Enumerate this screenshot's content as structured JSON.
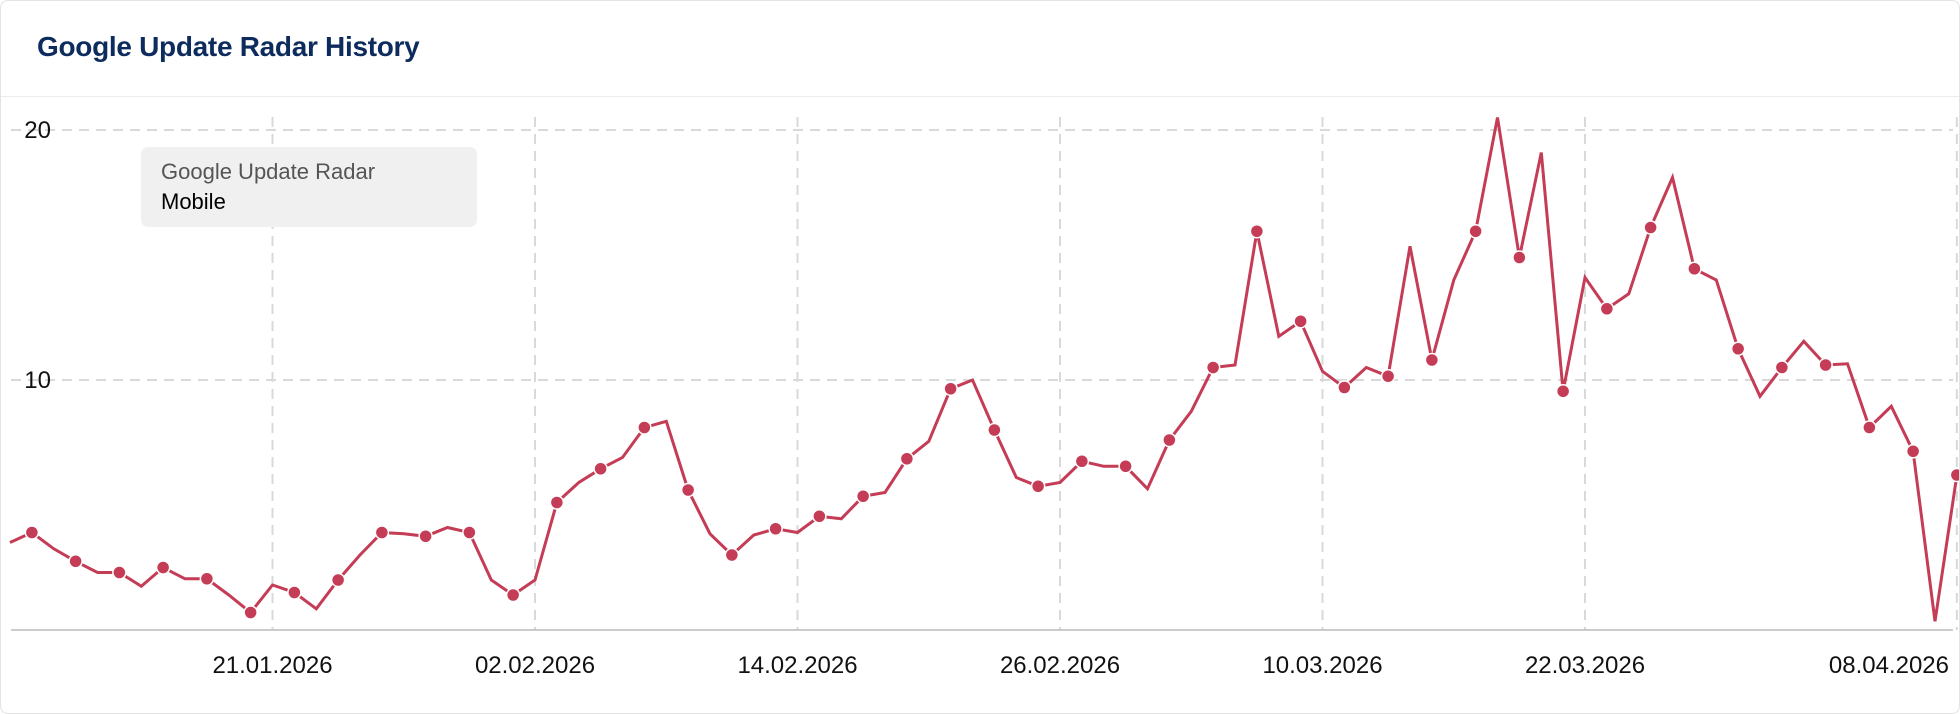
{
  "header": {
    "title": "Google Update Radar History"
  },
  "tooltip": {
    "title": "Google Update Radar",
    "subtitle": "Mobile"
  },
  "colors": {
    "series": "#c43c55",
    "grid": "#d9d9d9",
    "title": "#0d2b5c"
  },
  "chart_data": {
    "type": "line",
    "title": "",
    "xlabel": "",
    "ylabel": "",
    "ylim": [
      0,
      21
    ],
    "yticks": [
      10,
      20
    ],
    "xtick_labels": [
      "21.01.2026",
      "02.02.2026",
      "14.02.2026",
      "26.02.2026",
      "10.03.2026",
      "22.03.2026",
      "08.04.2026"
    ],
    "grid": true,
    "x": [
      "09.01.2026",
      "10.01.2026",
      "11.01.2026",
      "12.01.2026",
      "13.01.2026",
      "14.01.2026",
      "15.01.2026",
      "16.01.2026",
      "17.01.2026",
      "18.01.2026",
      "19.01.2026",
      "20.01.2026",
      "21.01.2026",
      "22.01.2026",
      "23.01.2026",
      "24.01.2026",
      "25.01.2026",
      "26.01.2026",
      "27.01.2026",
      "28.01.2026",
      "29.01.2026",
      "30.01.2026",
      "31.01.2026",
      "01.02.2026",
      "02.02.2026",
      "03.02.2026",
      "04.02.2026",
      "05.02.2026",
      "06.02.2026",
      "07.02.2026",
      "08.02.2026",
      "09.02.2026",
      "10.02.2026",
      "11.02.2026",
      "12.02.2026",
      "13.02.2026",
      "14.02.2026",
      "15.02.2026",
      "16.02.2026",
      "17.02.2026",
      "18.02.2026",
      "19.02.2026",
      "20.02.2026",
      "21.02.2026",
      "22.02.2026",
      "23.02.2026",
      "24.02.2026",
      "25.02.2026",
      "26.02.2026",
      "27.02.2026",
      "28.02.2026",
      "01.03.2026",
      "02.03.2026",
      "03.03.2026",
      "04.03.2026",
      "05.03.2026",
      "06.03.2026",
      "07.03.2026",
      "08.03.2026",
      "09.03.2026",
      "10.03.2026",
      "11.03.2026",
      "12.03.2026",
      "13.03.2026",
      "14.03.2026",
      "15.03.2026",
      "16.03.2026",
      "17.03.2026",
      "18.03.2026",
      "19.03.2026",
      "20.03.2026",
      "21.03.2026",
      "22.03.2026",
      "23.03.2026",
      "24.03.2026",
      "25.03.2026",
      "26.03.2026",
      "27.03.2026",
      "28.03.2026",
      "29.03.2026",
      "30.03.2026",
      "31.03.2026",
      "01.04.2026",
      "02.04.2026",
      "03.04.2026",
      "04.04.2026",
      "05.04.2026",
      "06.04.2026",
      "07.04.2026",
      "08.04.2026"
    ],
    "series": [
      {
        "name": "Mobile",
        "values": [
          3.5,
          3.9,
          3.25,
          2.75,
          2.3,
          2.3,
          1.75,
          2.5,
          2.05,
          2.05,
          1.4,
          0.7,
          1.8,
          1.5,
          0.85,
          2.0,
          3.0,
          3.9,
          3.85,
          3.75,
          4.1,
          3.9,
          2.0,
          1.4,
          2.0,
          5.1,
          5.9,
          6.45,
          6.9,
          8.1,
          8.35,
          5.6,
          3.85,
          3.0,
          3.8,
          4.05,
          3.9,
          4.55,
          4.45,
          5.35,
          5.5,
          6.85,
          7.55,
          9.65,
          10.0,
          8.0,
          6.1,
          5.75,
          5.9,
          6.75,
          6.55,
          6.55,
          5.65,
          7.6,
          8.75,
          10.5,
          10.6,
          15.95,
          11.75,
          12.35,
          10.35,
          9.7,
          10.5,
          10.15,
          15.35,
          10.8,
          14.0,
          15.95,
          20.5,
          14.9,
          19.1,
          9.55,
          14.1,
          12.85,
          13.45,
          16.1,
          18.1,
          14.45,
          14.0,
          11.25,
          9.35,
          10.5,
          11.55,
          10.6,
          10.65,
          8.1,
          8.95,
          7.15,
          0.35,
          6.2
        ]
      }
    ]
  }
}
